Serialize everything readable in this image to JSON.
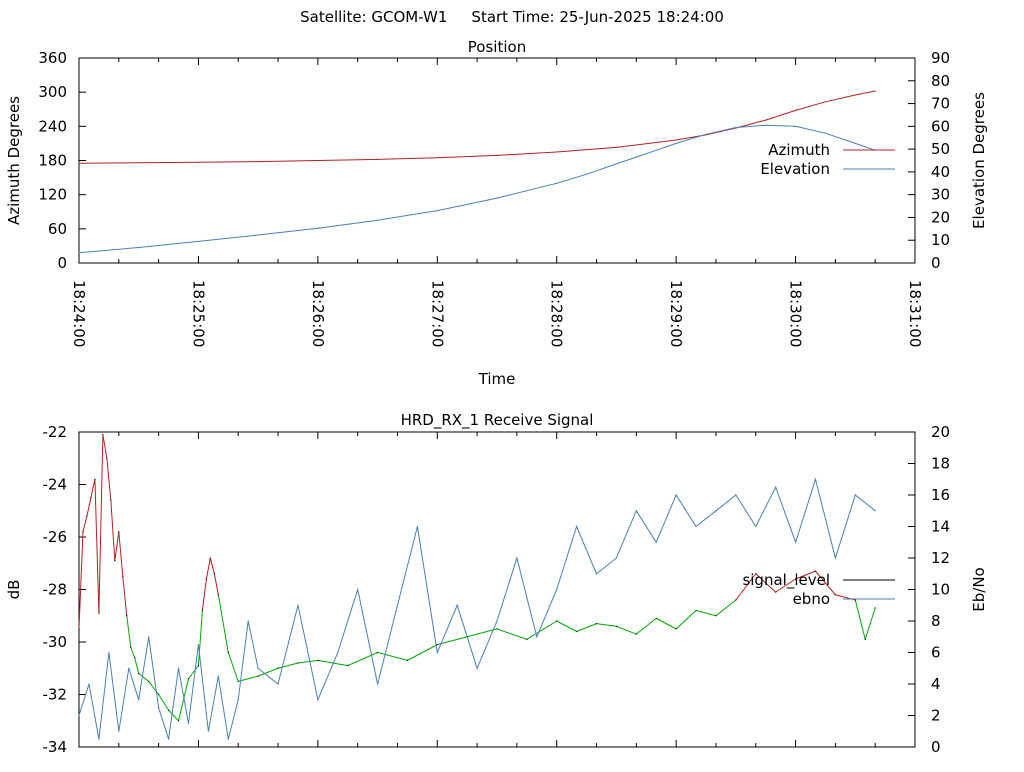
{
  "header": {
    "satellite": "Satellite: GCOM-W1",
    "start_time": "Start Time: 25-Jun-2025 18:24:00"
  },
  "chart_data": [
    {
      "type": "line",
      "title": "Position",
      "xlabel": "Time",
      "ylabel": "Azimuth Degrees",
      "y2label": "Elevation Degrees",
      "xlim": [
        "18:24:00",
        "18:31:00"
      ],
      "x_ticks": [
        "18:24:00",
        "18:25:00",
        "18:26:00",
        "18:27:00",
        "18:28:00",
        "18:29:00",
        "18:30:00",
        "18:31:00"
      ],
      "ylim": [
        0,
        360
      ],
      "y_ticks": [
        0,
        60,
        120,
        180,
        240,
        300,
        360
      ],
      "y2lim": [
        0,
        90
      ],
      "y2_ticks": [
        0,
        10,
        20,
        30,
        40,
        50,
        60,
        70,
        80,
        90
      ],
      "legend_position": "right",
      "series": [
        {
          "name": "Azimuth",
          "axis": "left",
          "color": "#b22222",
          "x": [
            "18:24:00",
            "18:24:30",
            "18:25:00",
            "18:25:30",
            "18:26:00",
            "18:26:30",
            "18:27:00",
            "18:27:30",
            "18:28:00",
            "18:28:30",
            "18:29:00",
            "18:29:15",
            "18:29:30",
            "18:29:45",
            "18:30:00",
            "18:30:15",
            "18:30:30",
            "18:30:40"
          ],
          "values": [
            175,
            176,
            177,
            178,
            180,
            182,
            185,
            189,
            195,
            203,
            216,
            225,
            237,
            251,
            268,
            283,
            295,
            302
          ]
        },
        {
          "name": "Elevation",
          "axis": "right",
          "color": "#4a7fb5",
          "x": [
            "18:24:00",
            "18:24:30",
            "18:25:00",
            "18:25:30",
            "18:26:00",
            "18:26:30",
            "18:27:00",
            "18:27:30",
            "18:28:00",
            "18:28:15",
            "18:28:30",
            "18:28:45",
            "18:29:00",
            "18:29:15",
            "18:29:30",
            "18:29:45",
            "18:30:00",
            "18:30:15",
            "18:30:30",
            "18:30:40"
          ],
          "values": [
            4.5,
            6.8,
            9.5,
            12.3,
            15.3,
            18.8,
            23,
            28.5,
            35,
            39,
            43.5,
            48,
            52.5,
            56.5,
            59.5,
            60.5,
            60,
            57,
            52.5,
            49.5
          ]
        }
      ]
    },
    {
      "type": "line",
      "title": "HRD_RX_1 Receive Signal",
      "ylabel": "dB",
      "y2label": "Eb/No",
      "xlim": [
        "18:24:00",
        "18:31:00"
      ],
      "ylim": [
        -34,
        -22
      ],
      "y_ticks": [
        -34,
        -32,
        -30,
        -28,
        -26,
        -24,
        -22
      ],
      "y2lim": [
        0,
        20
      ],
      "y2_ticks": [
        0,
        2,
        4,
        6,
        8,
        10,
        12,
        14,
        16,
        18,
        20
      ],
      "legend_position": "right",
      "series": [
        {
          "name": "signal_level",
          "axis": "left",
          "color": "#000000",
          "segment_colors": {
            "high": "#b22222",
            "low": "#00aa00",
            "threshold_db": -28.5
          },
          "x": [
            "18:24:00",
            "18:24:02",
            "18:24:04",
            "18:24:06",
            "18:24:08",
            "18:24:10",
            "18:24:12",
            "18:24:14",
            "18:24:16",
            "18:24:18",
            "18:24:20",
            "18:24:22",
            "18:24:24",
            "18:24:26",
            "18:24:28",
            "18:24:30",
            "18:24:35",
            "18:24:40",
            "18:24:45",
            "18:24:50",
            "18:24:55",
            "18:25:00",
            "18:25:02",
            "18:25:04",
            "18:25:06",
            "18:25:08",
            "18:25:10",
            "18:25:15",
            "18:25:20",
            "18:25:30",
            "18:25:40",
            "18:25:50",
            "18:26:00",
            "18:26:15",
            "18:26:30",
            "18:26:45",
            "18:27:00",
            "18:27:15",
            "18:27:30",
            "18:27:45",
            "18:28:00",
            "18:28:10",
            "18:28:20",
            "18:28:30",
            "18:28:40",
            "18:28:50",
            "18:29:00",
            "18:29:10",
            "18:29:20",
            "18:29:30",
            "18:29:40",
            "18:29:50",
            "18:30:00",
            "18:30:10",
            "18:30:20",
            "18:30:30",
            "18:30:35",
            "18:30:40"
          ],
          "values": [
            -29.5,
            -25.8,
            -25.2,
            -24.5,
            -23.8,
            -28.9,
            -22.1,
            -23.0,
            -24.6,
            -26.9,
            -25.8,
            -27.5,
            -29.0,
            -30.2,
            -30.6,
            -31.2,
            -31.5,
            -32.0,
            -32.6,
            -33.0,
            -31.4,
            -30.9,
            -28.8,
            -27.6,
            -26.8,
            -27.4,
            -28.2,
            -30.4,
            -31.5,
            -31.3,
            -31.0,
            -30.8,
            -30.7,
            -30.9,
            -30.4,
            -30.7,
            -30.1,
            -29.8,
            -29.5,
            -29.9,
            -29.2,
            -29.6,
            -29.3,
            -29.4,
            -29.7,
            -29.1,
            -29.5,
            -28.8,
            -29.0,
            -28.4,
            -27.4,
            -28.1,
            -27.6,
            -27.3,
            -28.2,
            -28.4,
            -29.9,
            -28.7
          ]
        },
        {
          "name": "ebno",
          "axis": "right",
          "color": "#4a7fb5",
          "x": [
            "18:24:00",
            "18:24:05",
            "18:24:10",
            "18:24:15",
            "18:24:20",
            "18:24:25",
            "18:24:30",
            "18:24:35",
            "18:24:40",
            "18:24:45",
            "18:24:50",
            "18:24:55",
            "18:25:00",
            "18:25:05",
            "18:25:10",
            "18:25:15",
            "18:25:20",
            "18:25:25",
            "18:25:30",
            "18:25:40",
            "18:25:50",
            "18:26:00",
            "18:26:10",
            "18:26:20",
            "18:26:30",
            "18:26:40",
            "18:26:50",
            "18:27:00",
            "18:27:10",
            "18:27:20",
            "18:27:30",
            "18:27:40",
            "18:27:50",
            "18:28:00",
            "18:28:10",
            "18:28:20",
            "18:28:30",
            "18:28:40",
            "18:28:50",
            "18:29:00",
            "18:29:10",
            "18:29:20",
            "18:29:30",
            "18:29:40",
            "18:29:50",
            "18:30:00",
            "18:30:10",
            "18:30:20",
            "18:30:30",
            "18:30:40"
          ],
          "values": [
            2,
            4,
            0.5,
            6,
            1,
            5,
            3,
            7,
            2.5,
            0.5,
            5,
            1.5,
            6.5,
            1,
            4.5,
            0.5,
            3,
            8,
            5,
            4,
            9,
            3,
            6,
            10,
            4,
            9,
            14,
            6,
            9,
            5,
            8,
            12,
            7,
            10,
            14,
            11,
            12,
            15,
            13,
            16,
            14,
            15,
            16,
            14,
            16.5,
            13,
            17,
            12,
            16,
            15
          ]
        }
      ]
    }
  ]
}
